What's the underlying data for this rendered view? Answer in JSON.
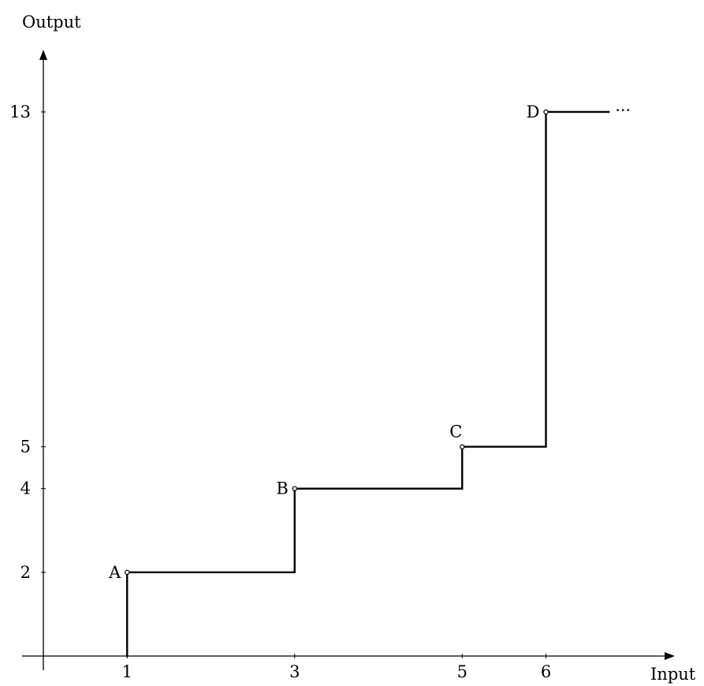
{
  "chart_data": {
    "type": "line",
    "xlabel": "Input",
    "ylabel": "Output",
    "xlim": [
      0,
      7.5
    ],
    "ylim": [
      0,
      14.2
    ],
    "x_ticks": [
      1,
      3,
      5,
      6
    ],
    "y_ticks": [
      2,
      4,
      5,
      13
    ],
    "grid": false,
    "step_path": [
      [
        1,
        0
      ],
      [
        1,
        2
      ],
      [
        3,
        2
      ],
      [
        3,
        4
      ],
      [
        5,
        4
      ],
      [
        5,
        5
      ],
      [
        6,
        5
      ],
      [
        6,
        13
      ],
      [
        6.75,
        13
      ]
    ],
    "points": [
      {
        "label": "A",
        "x": 1,
        "y": 2
      },
      {
        "label": "B",
        "x": 3,
        "y": 4
      },
      {
        "label": "C",
        "x": 5,
        "y": 5
      },
      {
        "label": "D",
        "x": 6,
        "y": 13
      }
    ],
    "continuation": "···"
  }
}
